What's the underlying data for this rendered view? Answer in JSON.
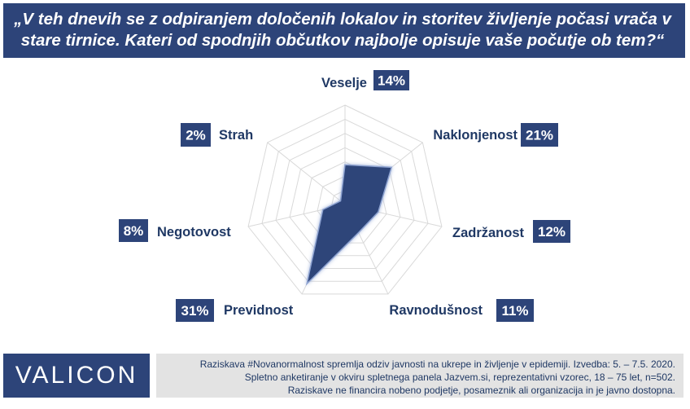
{
  "header": {
    "question": "„V teh dnevih se z odpiranjem določenih lokalov in storitev življenje počasi vrača v stare tirnice. Kateri od spodnjih občutkov najbolje opisuje vaše počutje ob tem?“"
  },
  "chart_data": {
    "type": "radar",
    "categories": [
      "Veselje",
      "Naklonjenost",
      "Zadržanost",
      "Ravnodušnost",
      "Previdnost",
      "Negotovost",
      "Strah"
    ],
    "values": [
      14,
      21,
      12,
      11,
      31,
      8,
      2
    ],
    "value_labels": [
      "14%",
      "21%",
      "12%",
      "11%",
      "31%",
      "8%",
      "2%"
    ],
    "rlim": [
      0,
      35
    ],
    "grid": true,
    "legend": "none",
    "colors": {
      "fill": "#2d4479",
      "grid": "#d9d9d9",
      "label": "#1f3864",
      "badge": "#2d4479"
    }
  },
  "footer": {
    "logo": "VALICON",
    "lines": [
      "Raziskava #Novanormalnost spremlja odziv javnosti na ukrepe in življenje v epidemiji. Izvedba: 5. – 7.5. 2020.",
      "Spletno anketiranje v okviru spletnega panela Jazvem.si, reprezentativni vzorec, 18 – 75 let, n=502.",
      "Raziskave ne financira nobeno podjetje, posameznik ali organizacija in je javno dostopna."
    ]
  }
}
